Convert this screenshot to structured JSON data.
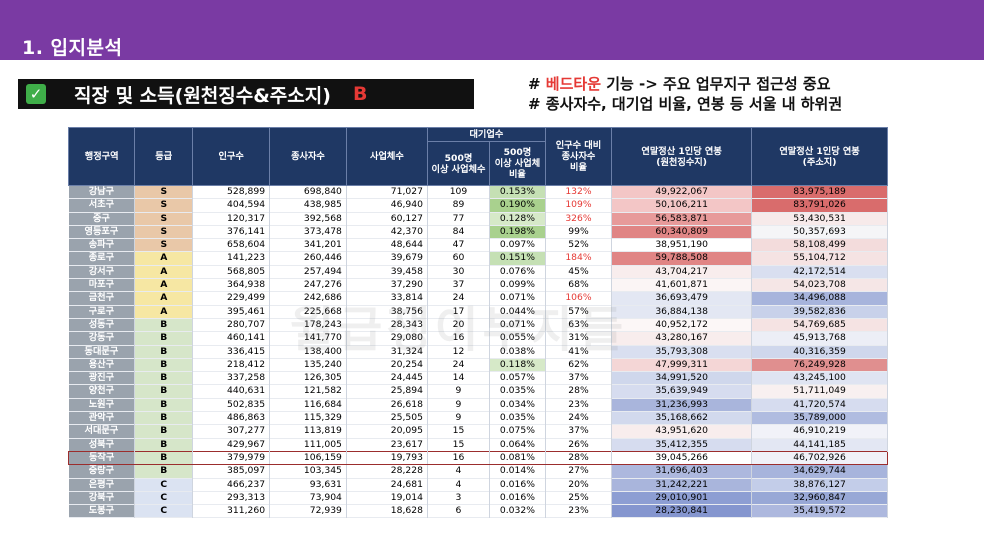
{
  "header": {
    "title": "1. 입지분석"
  },
  "subtitle": {
    "text": "직장 및 소득(원천징수&주소지)",
    "grade": "B"
  },
  "notes": {
    "line1_prefix": "# ",
    "line1_highlight": "베드타운",
    "line1_rest": " 기능 -> 주요 업무지구 접근성 중요",
    "line2": "# 종사자수, 대기업 비율, 연봉 등 서울 내 하위권"
  },
  "watermark": "월급쟁이부자들",
  "table": {
    "headers": {
      "region": "행정구역",
      "grade": "등급",
      "population": "인구수",
      "workers": "종사자수",
      "businesses": "사업체수",
      "big_group": "대기업수",
      "big_count": "500명\n이상 사업체수",
      "big_ratio": "500명\n이상 사업체\n비율",
      "workers_ratio": "인구수 대비\n종사자수\n비율",
      "salary_withholding": "연말정산 1인당 연봉\n(원천징수지)",
      "salary_address": "연말정산 1인당 연봉\n(주소지)"
    },
    "rows": [
      {
        "gu": "강남구",
        "grade": "S",
        "pop": "528,899",
        "workers": "698,840",
        "biz": "71,027",
        "big": "109",
        "bigr": "0.153%",
        "wr": "132%",
        "sw": "49,922,067",
        "sa": "83,975,189",
        "bigc": "#c5e0b4",
        "wrc": "red",
        "swc": "#f3c6c6",
        "sac": "#d96c6c"
      },
      {
        "gu": "서초구",
        "grade": "S",
        "pop": "404,594",
        "workers": "438,985",
        "biz": "46,940",
        "big": "89",
        "bigr": "0.190%",
        "wr": "109%",
        "sw": "50,106,211",
        "sa": "83,791,026",
        "bigc": "#a9d18e",
        "wrc": "red",
        "swc": "#f3c6c6",
        "sac": "#d96c6c"
      },
      {
        "gu": "중구",
        "grade": "S",
        "pop": "120,317",
        "workers": "392,568",
        "biz": "60,127",
        "big": "77",
        "bigr": "0.128%",
        "wr": "326%",
        "sw": "56,583,871",
        "sa": "53,430,531",
        "bigc": "#d6e9c8",
        "wrc": "red",
        "swc": "#e79a9a",
        "sac": "#f7eaea"
      },
      {
        "gu": "영등포구",
        "grade": "S",
        "pop": "376,141",
        "workers": "373,478",
        "biz": "42,370",
        "big": "84",
        "bigr": "0.198%",
        "wr": "99%",
        "sw": "60,340,809",
        "sa": "50,357,693",
        "bigc": "#a9d18e",
        "wrc": "",
        "swc": "#e08585",
        "sac": "#f5f5f7"
      },
      {
        "gu": "송파구",
        "grade": "S",
        "pop": "658,604",
        "workers": "341,201",
        "biz": "48,644",
        "big": "47",
        "bigr": "0.097%",
        "wr": "52%",
        "sw": "38,951,190",
        "sa": "58,108,499",
        "bigc": "#ffffff",
        "wrc": "",
        "swc": "#ffffff",
        "sac": "#f3dcdc"
      },
      {
        "gu": "종로구",
        "grade": "A",
        "pop": "141,223",
        "workers": "260,446",
        "biz": "39,679",
        "big": "60",
        "bigr": "0.151%",
        "wr": "184%",
        "sw": "59,788,508",
        "sa": "55,104,712",
        "bigc": "#c5e0b4",
        "wrc": "red",
        "swc": "#e08585",
        "sac": "#f5e3e3"
      },
      {
        "gu": "강서구",
        "grade": "A",
        "pop": "568,805",
        "workers": "257,494",
        "biz": "39,458",
        "big": "30",
        "bigr": "0.076%",
        "wr": "45%",
        "sw": "43,704,217",
        "sa": "42,172,514",
        "bigc": "#ffffff",
        "wrc": "",
        "swc": "#f8eded",
        "sac": "#d9dff0"
      },
      {
        "gu": "마포구",
        "grade": "A",
        "pop": "364,938",
        "workers": "247,276",
        "biz": "37,290",
        "big": "37",
        "bigr": "0.099%",
        "wr": "68%",
        "sw": "41,601,871",
        "sa": "54,023,708",
        "bigc": "#ffffff",
        "wrc": "",
        "swc": "#fbf5f5",
        "sac": "#f5e6e6"
      },
      {
        "gu": "금천구",
        "grade": "A",
        "pop": "229,499",
        "workers": "242,686",
        "biz": "33,814",
        "big": "24",
        "bigr": "0.071%",
        "wr": "106%",
        "sw": "36,693,479",
        "sa": "34,496,088",
        "bigc": "#ffffff",
        "wrc": "red",
        "swc": "#e3e7f3",
        "sac": "#a7b4dc"
      },
      {
        "gu": "구로구",
        "grade": "A",
        "pop": "395,461",
        "workers": "225,668",
        "biz": "38,756",
        "big": "17",
        "bigr": "0.044%",
        "wr": "57%",
        "sw": "36,884,138",
        "sa": "39,582,836",
        "bigc": "#ffffff",
        "wrc": "",
        "swc": "#e3e7f3",
        "sac": "#c8d1ea"
      },
      {
        "gu": "성동구",
        "grade": "B",
        "pop": "280,707",
        "workers": "178,243",
        "biz": "28,343",
        "big": "20",
        "bigr": "0.071%",
        "wr": "63%",
        "sw": "40,952,172",
        "sa": "54,769,685",
        "bigc": "#ffffff",
        "wrc": "",
        "swc": "#fcf7f7",
        "sac": "#f5e3e3"
      },
      {
        "gu": "강동구",
        "grade": "B",
        "pop": "460,141",
        "workers": "141,770",
        "biz": "29,080",
        "big": "16",
        "bigr": "0.055%",
        "wr": "31%",
        "sw": "43,280,167",
        "sa": "45,913,768",
        "bigc": "#ffffff",
        "wrc": "",
        "swc": "#f8eded",
        "sac": "#eceef6"
      },
      {
        "gu": "동대문구",
        "grade": "B",
        "pop": "336,415",
        "workers": "138,400",
        "biz": "31,324",
        "big": "12",
        "bigr": "0.038%",
        "wr": "41%",
        "sw": "35,793,308",
        "sa": "40,316,359",
        "bigc": "#ffffff",
        "wrc": "",
        "swc": "#d9dff0",
        "sac": "#cfd7ec"
      },
      {
        "gu": "용산구",
        "grade": "B",
        "pop": "218,412",
        "workers": "135,240",
        "biz": "20,254",
        "big": "24",
        "bigr": "0.118%",
        "wr": "62%",
        "sw": "47,999,311",
        "sa": "76,249,928",
        "bigc": "#d6e9c8",
        "wrc": "",
        "swc": "#f4d6d6",
        "sac": "#e08f8f"
      },
      {
        "gu": "광진구",
        "grade": "B",
        "pop": "337,258",
        "workers": "126,305",
        "biz": "24,445",
        "big": "14",
        "bigr": "0.057%",
        "wr": "37%",
        "sw": "34,991,520",
        "sa": "43,245,100",
        "bigc": "#ffffff",
        "wrc": "",
        "swc": "#cfd7ec",
        "sac": "#dfe4f2"
      },
      {
        "gu": "양천구",
        "grade": "B",
        "pop": "440,631",
        "workers": "121,582",
        "biz": "25,894",
        "big": "9",
        "bigr": "0.035%",
        "wr": "28%",
        "sw": "35,639,949",
        "sa": "51,711,049",
        "bigc": "#ffffff",
        "wrc": "",
        "swc": "#d6dcef",
        "sac": "#f8f0f0"
      },
      {
        "gu": "노원구",
        "grade": "B",
        "pop": "502,835",
        "workers": "116,684",
        "biz": "26,618",
        "big": "9",
        "bigr": "0.034%",
        "wr": "23%",
        "sw": "31,236,993",
        "sa": "41,720,574",
        "bigc": "#ffffff",
        "wrc": "",
        "swc": "#a9b5dc",
        "sac": "#d6dcef"
      },
      {
        "gu": "관악구",
        "grade": "B",
        "pop": "486,863",
        "workers": "115,329",
        "biz": "25,505",
        "big": "9",
        "bigr": "0.035%",
        "wr": "24%",
        "sw": "35,168,662",
        "sa": "35,789,000",
        "bigc": "#ffffff",
        "wrc": "",
        "swc": "#d2d9ed",
        "sac": "#b0bce0"
      },
      {
        "gu": "서대문구",
        "grade": "B",
        "pop": "307,277",
        "workers": "113,819",
        "biz": "20,095",
        "big": "15",
        "bigr": "0.075%",
        "wr": "37%",
        "sw": "43,951,620",
        "sa": "46,910,219",
        "bigc": "#ffffff",
        "wrc": "",
        "swc": "#f8eded",
        "sac": "#f1f2f8"
      },
      {
        "gu": "성북구",
        "grade": "B",
        "pop": "429,967",
        "workers": "111,005",
        "biz": "23,617",
        "big": "15",
        "bigr": "0.064%",
        "wr": "26%",
        "sw": "35,412,355",
        "sa": "44,141,185",
        "bigc": "#ffffff",
        "wrc": "",
        "swc": "#d6dcef",
        "sac": "#e3e7f3"
      },
      {
        "gu": "동작구",
        "grade": "B",
        "pop": "379,979",
        "workers": "106,159",
        "biz": "19,793",
        "big": "16",
        "bigr": "0.081%",
        "wr": "28%",
        "sw": "39,045,266",
        "sa": "46,702,926",
        "bigc": "#ffffff",
        "wrc": "",
        "swc": "#ffffff",
        "sac": "#f0f1f8",
        "hl": true
      },
      {
        "gu": "중랑구",
        "grade": "B",
        "pop": "385,097",
        "workers": "103,345",
        "biz": "28,228",
        "big": "4",
        "bigr": "0.014%",
        "wr": "27%",
        "sw": "31,696,403",
        "sa": "34,629,744",
        "bigc": "#ffffff",
        "wrc": "",
        "swc": "#adb8de",
        "sac": "#a7b4dc"
      },
      {
        "gu": "은평구",
        "grade": "C",
        "pop": "466,237",
        "workers": "93,631",
        "biz": "24,681",
        "big": "4",
        "bigr": "0.016%",
        "wr": "20%",
        "sw": "31,242,221",
        "sa": "38,876,127",
        "bigc": "#ffffff",
        "wrc": "",
        "swc": "#a9b5dc",
        "sac": "#c3cde9"
      },
      {
        "gu": "강북구",
        "grade": "C",
        "pop": "293,313",
        "workers": "73,904",
        "biz": "19,014",
        "big": "3",
        "bigr": "0.016%",
        "wr": "25%",
        "sw": "29,010,901",
        "sa": "32,960,847",
        "bigc": "#ffffff",
        "wrc": "",
        "swc": "#8d9ed3",
        "sac": "#98a8d6"
      },
      {
        "gu": "도봉구",
        "grade": "C",
        "pop": "311,260",
        "workers": "72,939",
        "biz": "18,628",
        "big": "6",
        "bigr": "0.032%",
        "wr": "23%",
        "sw": "28,230,841",
        "sa": "35,419,572",
        "bigc": "#ffffff",
        "wrc": "",
        "swc": "#8596cf",
        "sac": "#adb8de"
      }
    ]
  }
}
